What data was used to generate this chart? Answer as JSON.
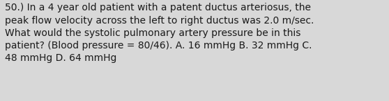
{
  "text": "50.) In a 4 year old patient with a patent ductus arteriosus, the\npeak flow velocity across the left to right ductus was 2.0 m/sec.\nWhat would the systolic pulmonary artery pressure be in this\npatient? (Blood pressure = 80/46). A. 16 mmHg B. 32 mmHg C.\n48 mmHg D. 64 mmHg",
  "background_color": "#d8d8d8",
  "text_color": "#1a1a1a",
  "font_size": 10.0,
  "font_weight": "normal"
}
